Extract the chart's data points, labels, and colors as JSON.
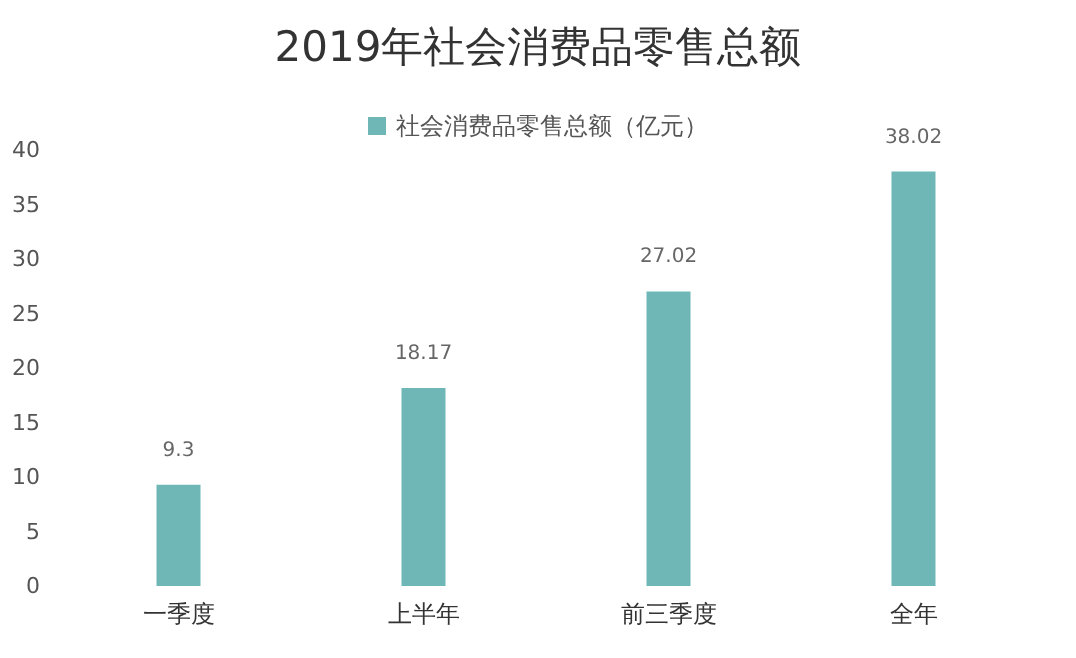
{
  "chart_data": {
    "type": "bar",
    "title": "2019年社会消费品零售总额",
    "categories": [
      "一季度",
      "上半年",
      "前三季度",
      "全年"
    ],
    "series": [
      {
        "name": "社会消费品零售总额（亿元）",
        "color": "#6fb7b7",
        "values": [
          9.3,
          18.17,
          27.02,
          38.02
        ]
      }
    ],
    "ylim": [
      0,
      40
    ],
    "yticks": [
      0,
      5,
      10,
      15,
      20,
      25,
      30,
      35,
      40
    ],
    "grid": false,
    "legend": "top",
    "data_labels": true
  }
}
